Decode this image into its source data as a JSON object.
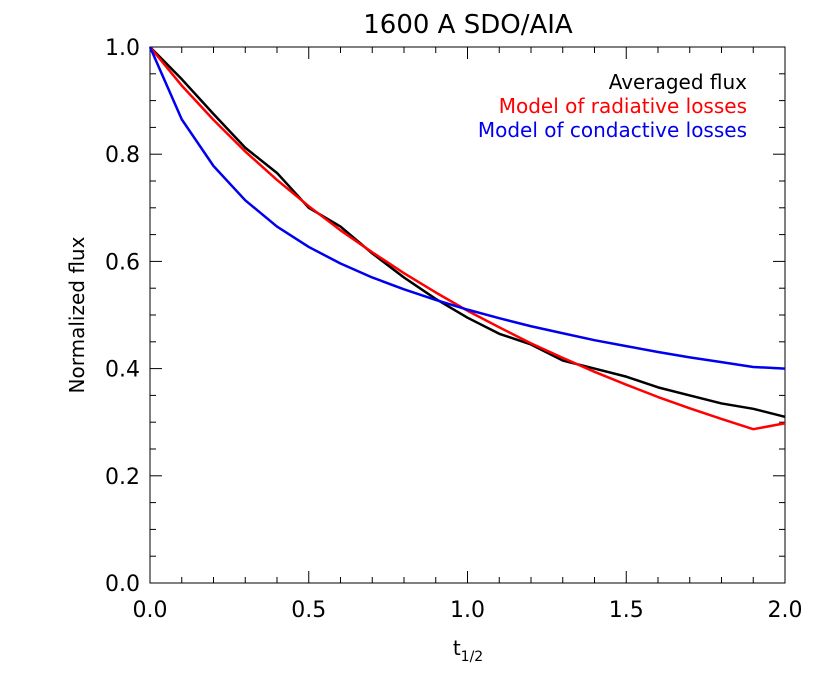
{
  "chart_data": {
    "type": "line",
    "title": "1600 A SDO/AIA",
    "xlabel_main": "t",
    "xlabel_sub": "1/2",
    "ylabel": "Normalized flux",
    "xlim": [
      0.0,
      2.0
    ],
    "ylim": [
      0.0,
      1.0
    ],
    "xticks": [
      "0.0",
      "0.5",
      "1.0",
      "1.5",
      "2.0"
    ],
    "yticks": [
      "0.0",
      "0.2",
      "0.4",
      "0.6",
      "0.8",
      "1.0"
    ],
    "grid": false,
    "legend_position": "top-right",
    "series": [
      {
        "name": "Averaged flux",
        "color": "#000000",
        "x": [
          0.0,
          0.1,
          0.2,
          0.3,
          0.4,
          0.5,
          0.6,
          0.7,
          0.8,
          0.9,
          1.0,
          1.1,
          1.2,
          1.3,
          1.4,
          1.5,
          1.6,
          1.7,
          1.8,
          1.9,
          2.0
        ],
        "y": [
          1.0,
          0.94,
          0.875,
          0.812,
          0.765,
          0.7,
          0.665,
          0.615,
          0.57,
          0.53,
          0.495,
          0.465,
          0.445,
          0.415,
          0.4,
          0.385,
          0.365,
          0.35,
          0.335,
          0.325,
          0.31
        ]
      },
      {
        "name": "Model of radiative losses",
        "color": "#ff0000",
        "x": [
          0.0,
          0.1,
          0.2,
          0.3,
          0.4,
          0.5,
          0.6,
          0.7,
          0.8,
          0.9,
          1.0,
          1.1,
          1.2,
          1.3,
          1.4,
          1.5,
          1.6,
          1.7,
          1.8,
          1.9,
          2.0
        ],
        "y": [
          1.0,
          0.928,
          0.864,
          0.805,
          0.752,
          0.703,
          0.658,
          0.617,
          0.578,
          0.542,
          0.508,
          0.477,
          0.447,
          0.42,
          0.394,
          0.37,
          0.347,
          0.326,
          0.306,
          0.287,
          0.298
        ]
      },
      {
        "name": "Model of condactive losses",
        "color": "#0000ee",
        "x": [
          0.0,
          0.1,
          0.2,
          0.3,
          0.4,
          0.5,
          0.6,
          0.7,
          0.8,
          0.9,
          1.0,
          1.1,
          1.2,
          1.3,
          1.4,
          1.5,
          1.6,
          1.7,
          1.8,
          1.9,
          2.0
        ],
        "y": [
          1.0,
          0.865,
          0.778,
          0.714,
          0.665,
          0.627,
          0.596,
          0.57,
          0.548,
          0.528,
          0.51,
          0.494,
          0.479,
          0.466,
          0.453,
          0.442,
          0.431,
          0.421,
          0.412,
          0.403,
          0.4
        ]
      }
    ]
  }
}
